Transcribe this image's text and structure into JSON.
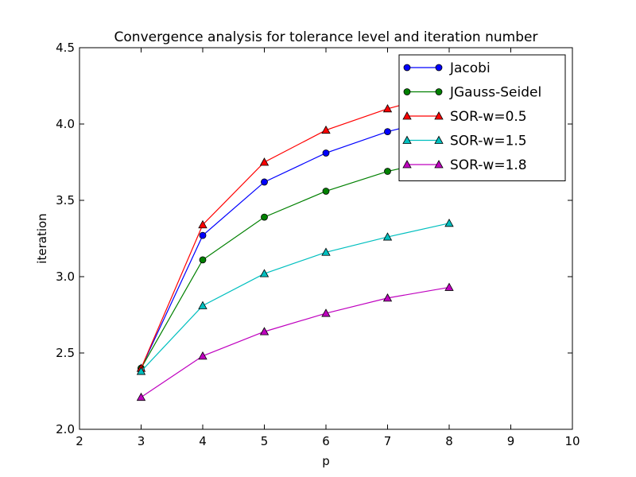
{
  "chart_data": {
    "type": "line",
    "title": "Convergence analysis for tolerance level and iteration number",
    "xlabel": "p",
    "ylabel": "iteration",
    "xlim": [
      2,
      10
    ],
    "ylim": [
      2.0,
      4.5
    ],
    "xticks": [
      "2",
      "3",
      "4",
      "5",
      "6",
      "7",
      "8",
      "9",
      "10"
    ],
    "yticks": [
      "2.0",
      "2.5",
      "3.0",
      "3.5",
      "4.0",
      "4.5"
    ],
    "xtick_values": [
      2,
      3,
      4,
      5,
      6,
      7,
      8,
      9,
      10
    ],
    "ytick_values": [
      2.0,
      2.5,
      3.0,
      3.5,
      4.0,
      4.5
    ],
    "legend_position": "top-right",
    "grid": false,
    "x": [
      3,
      4,
      5,
      6,
      7,
      8
    ],
    "series": [
      {
        "name": "Jacobi",
        "color": "#0000ff",
        "marker": "circle",
        "values": [
          2.4,
          3.27,
          3.62,
          3.81,
          3.95,
          4.05
        ]
      },
      {
        "name": "JGauss-Seidel",
        "color": "#008000",
        "marker": "circle",
        "values": [
          2.4,
          3.11,
          3.39,
          3.56,
          3.69,
          3.78
        ]
      },
      {
        "name": "SOR-w=0.5",
        "color": "#ff0000",
        "marker": "triangle",
        "values": [
          2.4,
          3.34,
          3.75,
          3.96,
          4.1,
          4.21
        ]
      },
      {
        "name": "SOR-w=1.5",
        "color": "#00bfbf",
        "marker": "triangle",
        "values": [
          2.38,
          2.81,
          3.02,
          3.16,
          3.26,
          3.35
        ]
      },
      {
        "name": "SOR-w=1.8",
        "color": "#bf00bf",
        "marker": "triangle",
        "values": [
          2.21,
          2.48,
          2.64,
          2.76,
          2.86,
          2.93
        ]
      }
    ]
  }
}
